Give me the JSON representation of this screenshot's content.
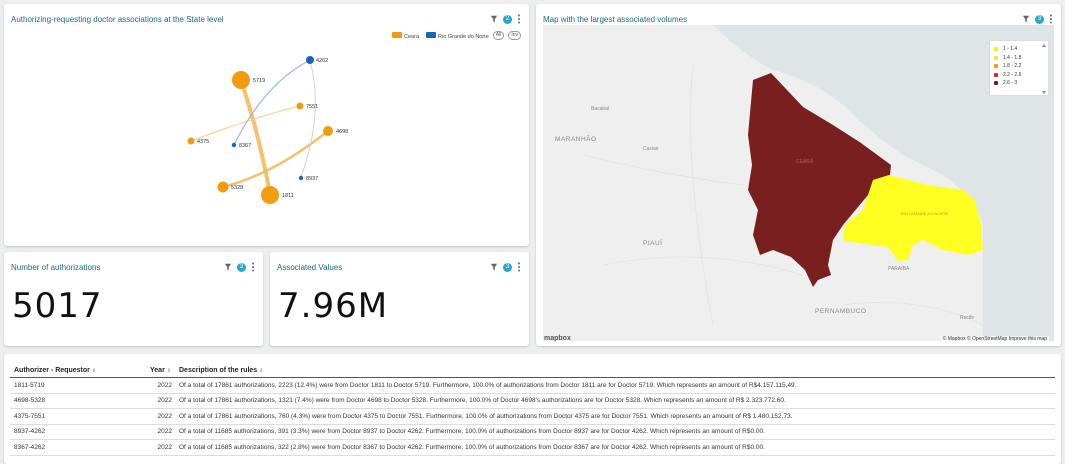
{
  "network_card": {
    "title": "Authorizing-requesting doctor associations at the State level",
    "badge": "2",
    "legend": [
      {
        "label": "Ceará",
        "color": "#f39c12"
      },
      {
        "label": "Rio Grande do Norte",
        "color": "#1565c0"
      }
    ],
    "legend_pills": [
      "All",
      "Inv"
    ],
    "nodes": [
      {
        "id": "5719",
        "label": "5719",
        "state": "Ceará"
      },
      {
        "id": "4262",
        "label": "4262",
        "state": "Rio Grande do Norte"
      },
      {
        "id": "7551",
        "label": "7551",
        "state": "Ceará"
      },
      {
        "id": "4698",
        "label": "4698",
        "state": "Ceará"
      },
      {
        "id": "4375",
        "label": "4375",
        "state": "Ceará"
      },
      {
        "id": "8367",
        "label": "8367",
        "state": "Rio Grande do Norte"
      },
      {
        "id": "8937",
        "label": "8937",
        "state": "Rio Grande do Norte"
      },
      {
        "id": "5328",
        "label": "5328",
        "state": "Ceará"
      },
      {
        "id": "1811",
        "label": "1811",
        "state": "Ceará"
      }
    ]
  },
  "map_card": {
    "title": "Map with the largest associated volumes",
    "badge": "3",
    "legend": [
      {
        "label": "1 - 1.4",
        "color": "#ffee00"
      },
      {
        "label": "1.4 - 1.8",
        "color": "#f7e04a"
      },
      {
        "label": "1.8 - 2.2",
        "color": "#f39c12"
      },
      {
        "label": "2.2 - 2.6",
        "color": "#d62728"
      },
      {
        "label": "2.6 - 3",
        "color": "#7b1a1a"
      }
    ],
    "place_labels": [
      "MARANHÃO",
      "PIAUÍ",
      "PERNAMBUCO",
      "PARAÍBA",
      "CEARÁ",
      "RIO GRANDE DO NORTE",
      "Bacabal",
      "Caxias",
      "Recife"
    ],
    "attribution": "© Mapbox © OpenStreetMap Improve this map",
    "logo": "mapbox"
  },
  "authorizations_card": {
    "title": "Number of authorizations",
    "badge": "3",
    "value": "5017"
  },
  "values_card": {
    "title": "Associated Values",
    "badge": "3",
    "value": "7.96M"
  },
  "rules_table": {
    "headers": [
      "Authorizer - Requestor",
      "Year",
      "Description of the rules"
    ],
    "rows": [
      {
        "pair": "1811-5719",
        "year": "2022",
        "desc": "Of a total of 17861 authorizations, 2223 (12.4%) were from Doctor 1811 to Doctor 5719. Furthermore, 100.0% of authorizations from Doctor 1811 are for Doctor 5719. Which represents an amount of R$4.157.115,49."
      },
      {
        "pair": "4698-5328",
        "year": "2022",
        "desc": "Of a total of 17861 authorizations, 1321 (7.4%) were from Doctor 4698 to Doctor 5328. Furthermore, 100.0% of Doctor 4698's authorizations are for Doctor 5328. Which represents an amount of R$ 2.323.772,60."
      },
      {
        "pair": "4375-7551",
        "year": "2022",
        "desc": "Of a total of 17861 authorizations, 760 (4.3%) were from Doctor 4375 to Doctor 7551. Furthermore, 100.0% of authorizations from Doctor 4375 are for Doctor 7551. Which represents an amount of R$ 1.480.152,73."
      },
      {
        "pair": "8937-4262",
        "year": "2022",
        "desc": "Of a total of 11685 authorizations, 391 (3.3%) were from Doctor 8937 to Doctor 4262. Furthermore, 100.0% of authorizations from Doctor 8937 are for Doctor 4262. Which represents an amount of R$0.00."
      },
      {
        "pair": "8367-4262",
        "year": "2022",
        "desc": "Of a total of 11685 authorizations, 322 (2.8%) were from Doctor 8367 to Doctor 4262. Furthermore, 100.0% of authorizations from Doctor 8367 are for Doctor 4262. Which represents an amount of R$0.00."
      }
    ]
  }
}
